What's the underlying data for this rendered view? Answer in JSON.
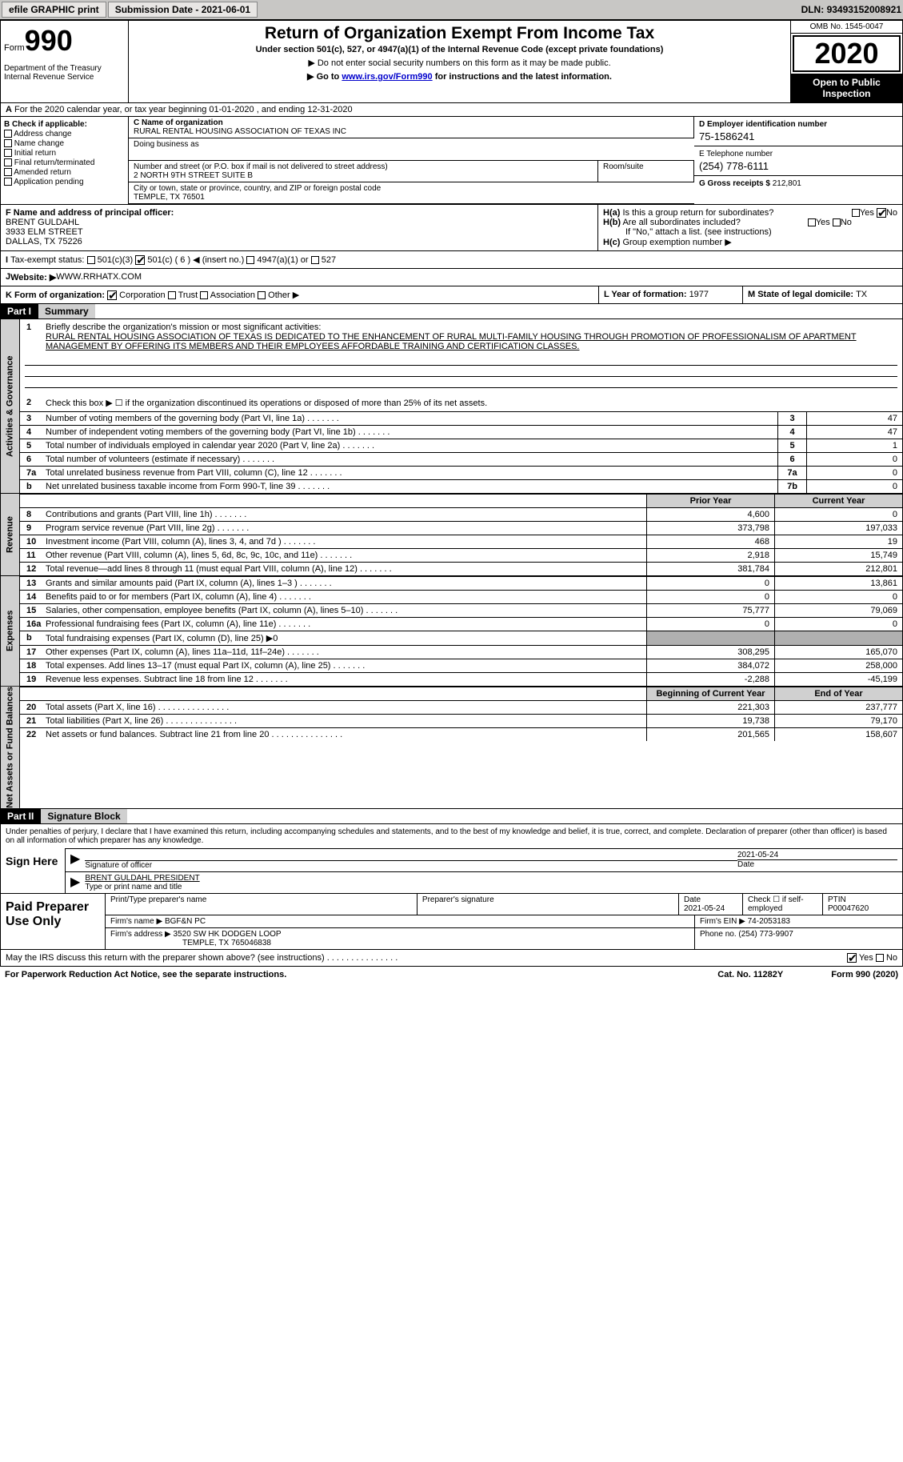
{
  "topbar": {
    "efile": "efile GRAPHIC print",
    "submission_label": "Submission Date - ",
    "submission_date": "2021-06-01",
    "dln_label": "DLN: ",
    "dln": "93493152008921"
  },
  "header": {
    "form_label": "Form",
    "form_num": "990",
    "dept": "Department of the Treasury\nInternal Revenue Service",
    "title": "Return of Organization Exempt From Income Tax",
    "subtitle": "Under section 501(c), 527, or 4947(a)(1) of the Internal Revenue Code (except private foundations)",
    "instr1": "▶ Do not enter social security numbers on this form as it may be made public.",
    "instr2_pre": "▶ Go to ",
    "instr2_link": "www.irs.gov/Form990",
    "instr2_post": " for instructions and the latest information.",
    "omb": "OMB No. 1545-0047",
    "year": "2020",
    "open_public": "Open to Public Inspection"
  },
  "row_a": "For the 2020 calendar year, or tax year beginning 01-01-2020    , and ending 12-31-2020",
  "col_b": {
    "header": "B Check if applicable:",
    "items": [
      "Address change",
      "Name change",
      "Initial return",
      "Final return/terminated",
      "Amended return",
      "Application pending"
    ]
  },
  "org": {
    "name_label": "C Name of organization",
    "name": "RURAL RENTAL HOUSING ASSOCIATION OF TEXAS INC",
    "dba_label": "Doing business as",
    "street_label": "Number and street (or P.O. box if mail is not delivered to street address)",
    "room_label": "Room/suite",
    "street": "2 NORTH 9TH STREET SUITE B",
    "city_label": "City or town, state or province, country, and ZIP or foreign postal code",
    "city": "TEMPLE, TX  76501"
  },
  "right_info": {
    "ein_label": "D Employer identification number",
    "ein": "75-1586241",
    "tel_label": "E Telephone number",
    "tel": "(254) 778-6111",
    "gross_label": "G Gross receipts $ ",
    "gross": "212,801"
  },
  "officer": {
    "label": "F  Name and address of principal officer:",
    "name": "BRENT GULDAHL",
    "street": "3933 ELM STREET",
    "city": "DALLAS, TX  75226"
  },
  "h": {
    "a": "Is this a group return for subordinates?",
    "b": "Are all subordinates included?",
    "b_note": "If \"No,\" attach a list. (see instructions)",
    "c": "Group exemption number ▶"
  },
  "tax_status": {
    "label": "Tax-exempt status:",
    "opts": [
      "501(c)(3)",
      "501(c) ( 6 ) ◀ (insert no.)",
      "4947(a)(1) or",
      "527"
    ]
  },
  "website": {
    "label": "Website: ▶ ",
    "value": "WWW.RRHATX.COM"
  },
  "k_row": {
    "label": "K Form of organization:",
    "opts": [
      "Corporation",
      "Trust",
      "Association",
      "Other ▶"
    ],
    "year_label": "L Year of formation: ",
    "year": "1977",
    "state_label": "M State of legal domicile: ",
    "state": "TX"
  },
  "part1": {
    "header": "Part I",
    "title": "Summary"
  },
  "summary": {
    "line1_label": "Briefly describe the organization's mission or most significant activities:",
    "mission": "RURAL RENTAL HOUSING ASSOCIATION OF TEXAS IS DEDICATED TO THE ENHANCEMENT OF RURAL MULTI-FAMILY HOUSING THROUGH PROMOTION OF PROFESSIONALISM OF APARTMENT MANAGEMENT BY OFFERING ITS MEMBERS AND THEIR EMPLOYEES AFFORDABLE TRAINING AND CERTIFICATION CLASSES.",
    "line2": "Check this box ▶ ☐  if the organization discontinued its operations or disposed of more than 25% of its net assets.",
    "lines": [
      {
        "n": "3",
        "t": "Number of voting members of the governing body (Part VI, line 1a)",
        "box": "3",
        "v": "47"
      },
      {
        "n": "4",
        "t": "Number of independent voting members of the governing body (Part VI, line 1b)",
        "box": "4",
        "v": "47"
      },
      {
        "n": "5",
        "t": "Total number of individuals employed in calendar year 2020 (Part V, line 2a)",
        "box": "5",
        "v": "1"
      },
      {
        "n": "6",
        "t": "Total number of volunteers (estimate if necessary)",
        "box": "6",
        "v": "0"
      },
      {
        "n": "7a",
        "t": "Total unrelated business revenue from Part VIII, column (C), line 12",
        "box": "7a",
        "v": "0"
      },
      {
        "n": "b",
        "t": "Net unrelated business taxable income from Form 990-T, line 39",
        "box": "7b",
        "v": "0"
      }
    ]
  },
  "col_headers": {
    "prior": "Prior Year",
    "current": "Current Year"
  },
  "revenue": [
    {
      "n": "8",
      "t": "Contributions and grants (Part VIII, line 1h)",
      "p": "4,600",
      "c": "0"
    },
    {
      "n": "9",
      "t": "Program service revenue (Part VIII, line 2g)",
      "p": "373,798",
      "c": "197,033"
    },
    {
      "n": "10",
      "t": "Investment income (Part VIII, column (A), lines 3, 4, and 7d )",
      "p": "468",
      "c": "19"
    },
    {
      "n": "11",
      "t": "Other revenue (Part VIII, column (A), lines 5, 6d, 8c, 9c, 10c, and 11e)",
      "p": "2,918",
      "c": "15,749"
    },
    {
      "n": "12",
      "t": "Total revenue—add lines 8 through 11 (must equal Part VIII, column (A), line 12)",
      "p": "381,784",
      "c": "212,801"
    }
  ],
  "expenses": [
    {
      "n": "13",
      "t": "Grants and similar amounts paid (Part IX, column (A), lines 1–3 )",
      "p": "0",
      "c": "13,861"
    },
    {
      "n": "14",
      "t": "Benefits paid to or for members (Part IX, column (A), line 4)",
      "p": "0",
      "c": "0"
    },
    {
      "n": "15",
      "t": "Salaries, other compensation, employee benefits (Part IX, column (A), lines 5–10)",
      "p": "75,777",
      "c": "79,069"
    },
    {
      "n": "16a",
      "t": "Professional fundraising fees (Part IX, column (A), line 11e)",
      "p": "0",
      "c": "0"
    },
    {
      "n": "b",
      "t": "Total fundraising expenses (Part IX, column (D), line 25) ▶0",
      "p": "",
      "c": "",
      "shaded": true
    },
    {
      "n": "17",
      "t": "Other expenses (Part IX, column (A), lines 11a–11d, 11f–24e)",
      "p": "308,295",
      "c": "165,070"
    },
    {
      "n": "18",
      "t": "Total expenses. Add lines 13–17 (must equal Part IX, column (A), line 25)",
      "p": "384,072",
      "c": "258,000"
    },
    {
      "n": "19",
      "t": "Revenue less expenses. Subtract line 18 from line 12",
      "p": "-2,288",
      "c": "-45,199"
    }
  ],
  "balance_headers": {
    "begin": "Beginning of Current Year",
    "end": "End of Year"
  },
  "balances": [
    {
      "n": "20",
      "t": "Total assets (Part X, line 16)",
      "p": "221,303",
      "c": "237,777"
    },
    {
      "n": "21",
      "t": "Total liabilities (Part X, line 26)",
      "p": "19,738",
      "c": "79,170"
    },
    {
      "n": "22",
      "t": "Net assets or fund balances. Subtract line 21 from line 20",
      "p": "201,565",
      "c": "158,607"
    }
  ],
  "part2": {
    "header": "Part II",
    "title": "Signature Block"
  },
  "sig": {
    "intro": "Under penalties of perjury, I declare that I have examined this return, including accompanying schedules and statements, and to the best of my knowledge and belief, it is true, correct, and complete. Declaration of preparer (other than officer) is based on all information of which preparer has any knowledge.",
    "sign_here": "Sign Here",
    "sig_officer": "Signature of officer",
    "date": "Date",
    "date_val": "2021-05-24",
    "name_title": "BRENT GULDAHL PRESIDENT",
    "name_title_label": "Type or print name and title"
  },
  "preparer": {
    "label": "Paid Preparer Use Only",
    "h1": "Print/Type preparer's name",
    "h2": "Preparer's signature",
    "h3": "Date",
    "h3_val": "2021-05-24",
    "h4": "Check ☐ if self-employed",
    "h5": "PTIN",
    "ptin": "P00047620",
    "firm_name_label": "Firm's name    ▶ ",
    "firm_name": "BGF&N PC",
    "firm_ein_label": "Firm's EIN ▶ ",
    "firm_ein": "74-2053183",
    "firm_addr_label": "Firm's address ▶ ",
    "firm_addr": "3520 SW HK DODGEN LOOP",
    "firm_city": "TEMPLE, TX  765046838",
    "phone_label": "Phone no. ",
    "phone": "(254) 773-9907"
  },
  "discuss": "May the IRS discuss this return with the preparer shown above? (see instructions)",
  "footer": {
    "paperwork": "For Paperwork Reduction Act Notice, see the separate instructions.",
    "cat": "Cat. No. 11282Y",
    "form": "Form 990 (2020)"
  },
  "vtabs": {
    "ag": "Activities & Governance",
    "rev": "Revenue",
    "exp": "Expenses",
    "bal": "Net Assets or Fund Balances"
  },
  "yn": {
    "yes": "Yes",
    "no": "No"
  }
}
